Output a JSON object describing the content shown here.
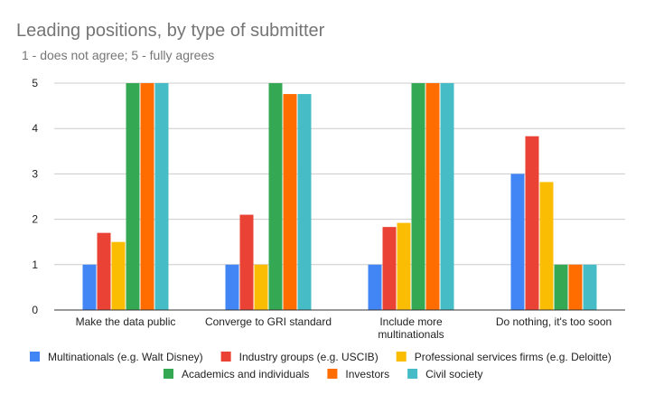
{
  "chart_data": {
    "type": "bar",
    "title": "Leading positions, by type of submitter",
    "subtitle": "1 - does not agree; 5 - fully agrees",
    "categories": [
      [
        "Make the data public"
      ],
      [
        "Converge to GRI standard"
      ],
      [
        "Include more",
        "multinationals"
      ],
      [
        "Do nothing, it's too soon"
      ]
    ],
    "ylim": [
      0,
      5
    ],
    "yticks": [
      "0",
      "1",
      "2",
      "3",
      "4",
      "5"
    ],
    "grid": true,
    "legend_position": "bottom",
    "series": [
      {
        "name": "Multinationals (e.g. Walt Disney)",
        "color": "#4285f4",
        "values": [
          1,
          1,
          1,
          3
        ]
      },
      {
        "name": "Industry groups (e.g. USCIB)",
        "color": "#ea4335",
        "values": [
          1.7,
          2.1,
          1.83,
          3.83
        ]
      },
      {
        "name": "Professional services firms (e.g. Deloitte)",
        "color": "#fbbc04",
        "values": [
          1.5,
          1,
          1.92,
          2.82
        ]
      },
      {
        "name": "Academics and individuals",
        "color": "#34a853",
        "values": [
          5,
          5,
          5,
          1
        ]
      },
      {
        "name": "Investors",
        "color": "#ff6d01",
        "values": [
          5,
          4.76,
          5,
          1
        ]
      },
      {
        "name": "Civil society",
        "color": "#46bdc6",
        "values": [
          5,
          4.76,
          5,
          1
        ]
      }
    ]
  }
}
